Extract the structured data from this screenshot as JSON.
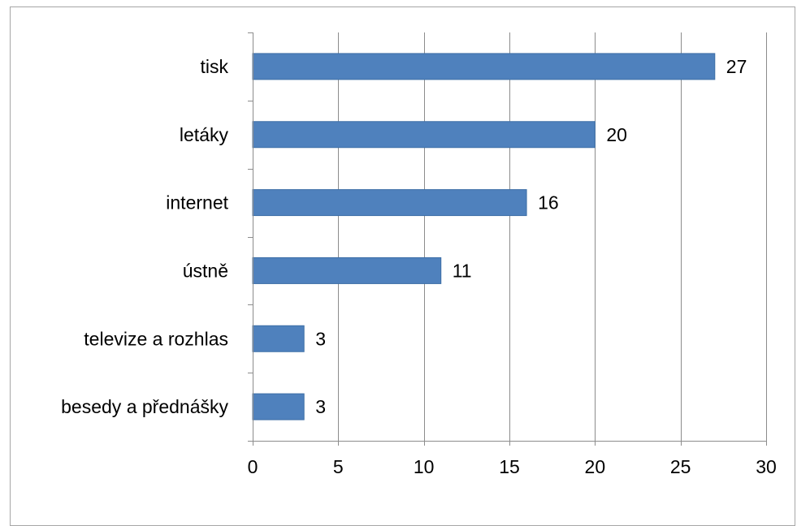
{
  "chart_data": {
    "type": "bar",
    "orientation": "horizontal",
    "categories": [
      "tisk",
      "letáky",
      "internet",
      "ústně",
      "televize a rozhlas",
      "besedy a přednášky"
    ],
    "values": [
      27,
      20,
      16,
      11,
      3,
      3
    ],
    "xlim": [
      0,
      30
    ],
    "xticks": [
      0,
      5,
      10,
      15,
      20,
      25,
      30
    ],
    "xtick_labels": [
      "0",
      "5",
      "10",
      "15",
      "20",
      "25",
      "30"
    ],
    "data_labels": [
      "27",
      "20",
      "16",
      "11",
      "3",
      "3"
    ],
    "grid": "vertical",
    "legend": "none",
    "bar_color": "#4f81bd",
    "bar_border_color": "#3c6ea6",
    "grid_color": "#8c8c8c",
    "axis_color": "#8c8c8c"
  }
}
